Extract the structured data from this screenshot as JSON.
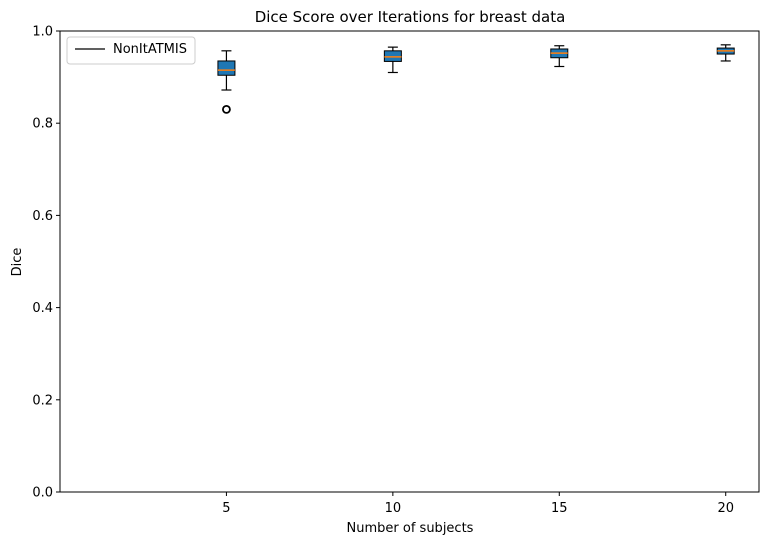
{
  "chart_data": {
    "type": "box",
    "title": "Dice Score over Iterations for breast data",
    "xlabel": "Number of subjects",
    "ylabel": "Dice",
    "xlim": [
      0,
      21
    ],
    "ylim": [
      0.0,
      1.0
    ],
    "x_ticks": [
      5,
      10,
      15,
      20
    ],
    "y_ticks": [
      0.0,
      0.2,
      0.4,
      0.6,
      0.8,
      1.0
    ],
    "y_tick_labels": [
      "0.0",
      "0.2",
      "0.4",
      "0.6",
      "0.8",
      "1.0"
    ],
    "legend": {
      "position": "top-left",
      "entries": [
        {
          "label": "NonItATMIS",
          "style": "line",
          "color": "#000000"
        }
      ]
    },
    "box_color": "#1f77b4",
    "median_color": "#ff7f0e",
    "series": [
      {
        "name": "NonItATMIS",
        "boxes": [
          {
            "x": 5,
            "whislo": 0.872,
            "q1": 0.904,
            "med": 0.915,
            "q3": 0.935,
            "whishi": 0.957,
            "fliers": [
              0.83
            ]
          },
          {
            "x": 10,
            "whislo": 0.91,
            "q1": 0.934,
            "med": 0.944,
            "q3": 0.957,
            "whishi": 0.965,
            "fliers": []
          },
          {
            "x": 15,
            "whislo": 0.923,
            "q1": 0.942,
            "med": 0.952,
            "q3": 0.961,
            "whishi": 0.968,
            "fliers": []
          },
          {
            "x": 20,
            "whislo": 0.935,
            "q1": 0.95,
            "med": 0.957,
            "q3": 0.963,
            "whishi": 0.97,
            "fliers": []
          }
        ]
      }
    ]
  }
}
